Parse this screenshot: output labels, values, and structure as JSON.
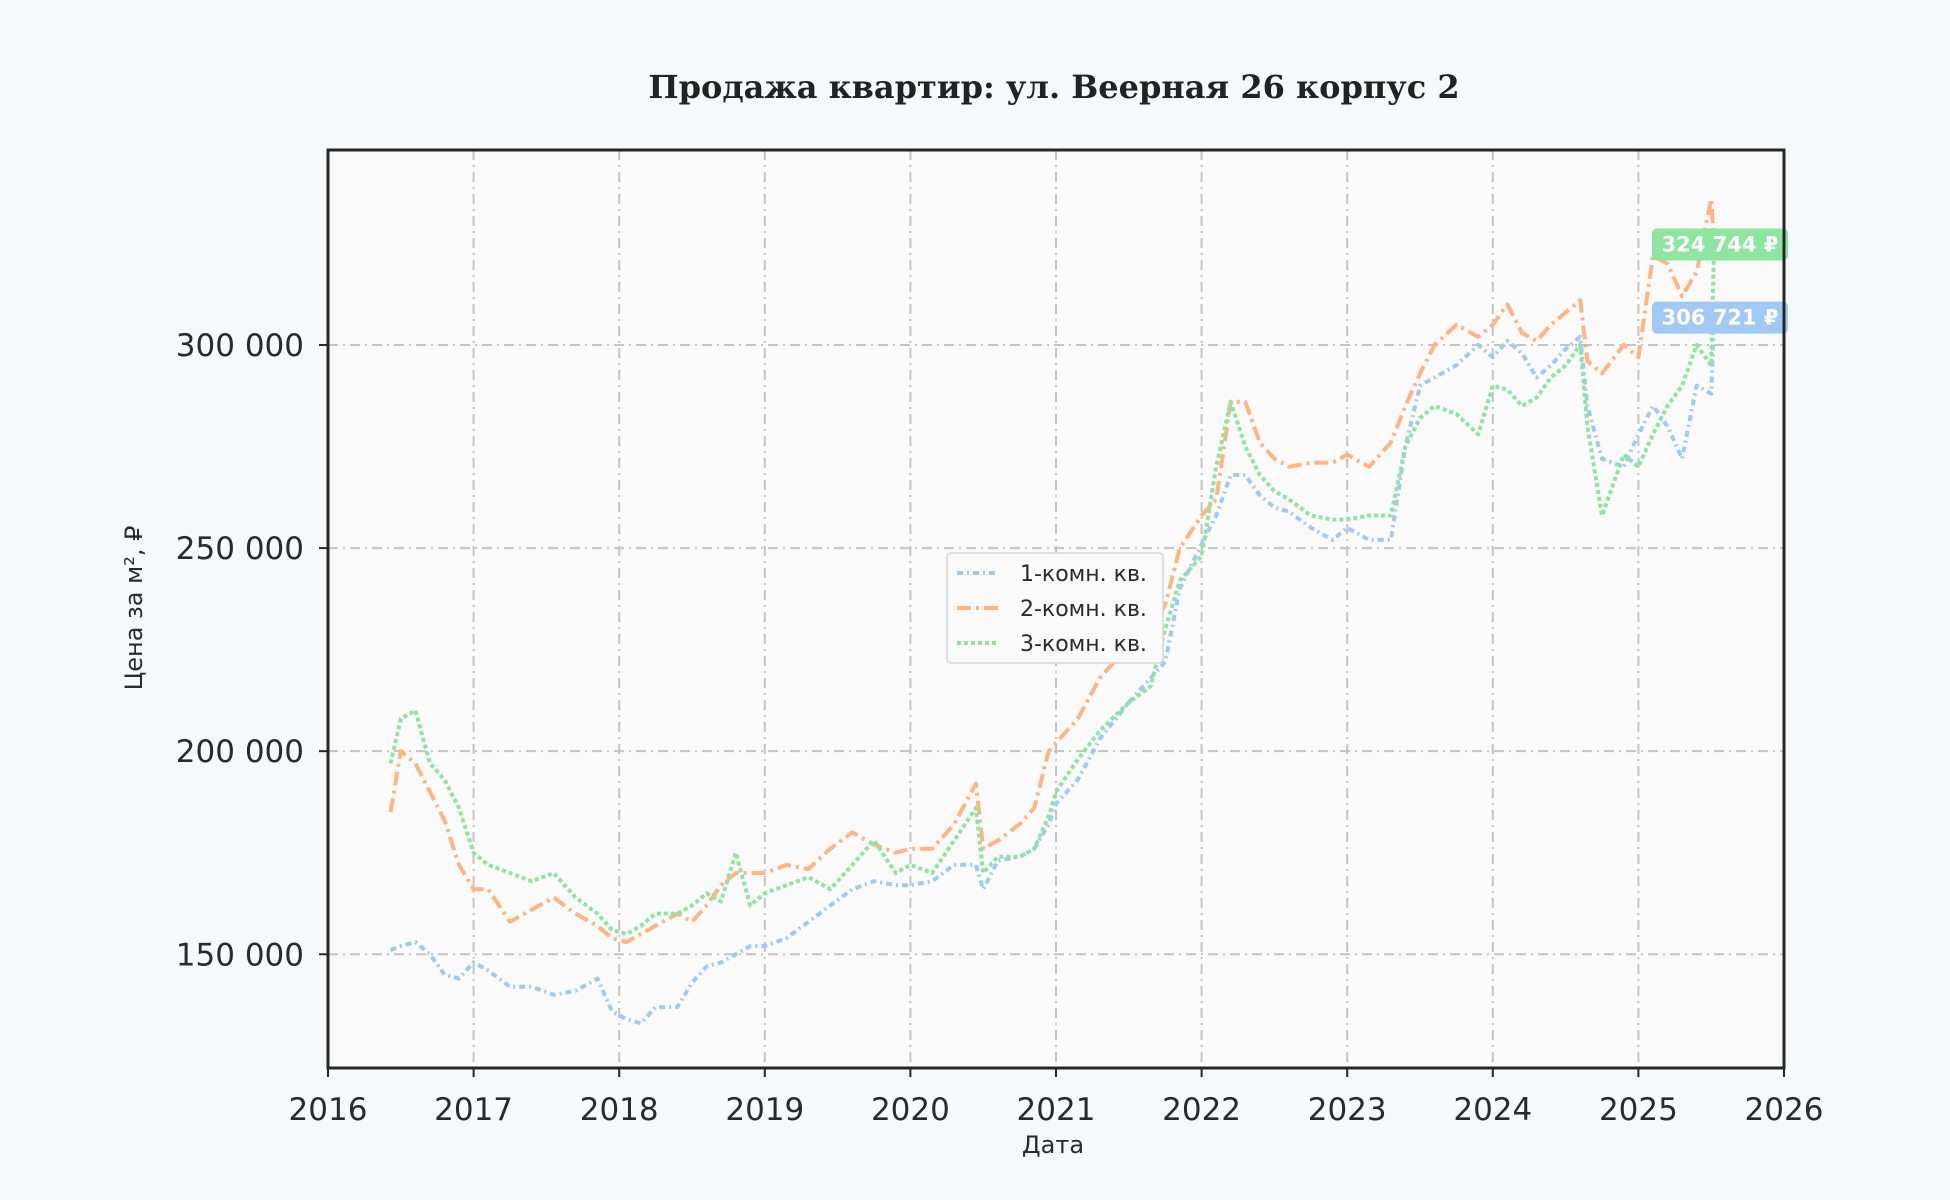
{
  "chart_data": {
    "type": "line",
    "title": "Продажа квартир: ул. Веерная 26 корпус 2",
    "xlabel": "Дата",
    "ylabel": "Цена за м², ₽",
    "xlim": [
      2016,
      2026
    ],
    "ylim": [
      122000,
      348000
    ],
    "x_ticks": [
      "2016",
      "2017",
      "2018",
      "2019",
      "2020",
      "2021",
      "2022",
      "2023",
      "2024",
      "2025",
      "2026"
    ],
    "y_ticks": [
      {
        "value": 150000,
        "label": "150 000"
      },
      {
        "value": 200000,
        "label": "200 000"
      },
      {
        "value": 250000,
        "label": "250 000"
      },
      {
        "value": 300000,
        "label": "300 000"
      }
    ],
    "grid": true,
    "legend_position": "center",
    "series": [
      {
        "name": "1-комн. кв.",
        "color": "#a1c9f4",
        "dash": "6 4 2 4",
        "x": [
          2016.43,
          2016.5,
          2016.6,
          2016.7,
          2016.8,
          2016.9,
          2017.0,
          2017.1,
          2017.25,
          2017.4,
          2017.55,
          2017.7,
          2017.85,
          2017.95,
          2018.05,
          2018.15,
          2018.25,
          2018.4,
          2018.5,
          2018.6,
          2018.7,
          2018.8,
          2018.9,
          2019.0,
          2019.15,
          2019.3,
          2019.45,
          2019.6,
          2019.75,
          2019.9,
          2020.0,
          2020.15,
          2020.3,
          2020.45,
          2020.5,
          2020.6,
          2020.75,
          2020.85,
          2020.95,
          2021.0,
          2021.15,
          2021.3,
          2021.5,
          2021.65,
          2021.75,
          2021.85,
          2022.0,
          2022.1,
          2022.2,
          2022.3,
          2022.4,
          2022.5,
          2022.6,
          2022.75,
          2022.9,
          2023.0,
          2023.15,
          2023.3,
          2023.4,
          2023.5,
          2023.6,
          2023.75,
          2023.9,
          2024.0,
          2024.1,
          2024.2,
          2024.3,
          2024.4,
          2024.5,
          2024.6,
          2024.65,
          2024.75,
          2024.9,
          2025.0,
          2025.1,
          2025.2,
          2025.3,
          2025.4,
          2025.5,
          2025.52
        ],
        "y": [
          151000,
          152000,
          153000,
          150000,
          145000,
          144000,
          148000,
          146000,
          142000,
          142000,
          140000,
          141000,
          144000,
          136000,
          134000,
          133000,
          137000,
          137000,
          143000,
          147000,
          148000,
          150000,
          152000,
          152000,
          154000,
          158000,
          162000,
          166000,
          168000,
          167000,
          167000,
          168000,
          172000,
          172000,
          166000,
          173000,
          174000,
          176000,
          182000,
          187000,
          193000,
          203000,
          212000,
          218000,
          222000,
          240000,
          251000,
          258000,
          268000,
          268000,
          263000,
          260000,
          259000,
          255000,
          252000,
          255000,
          252000,
          252000,
          275000,
          290000,
          292000,
          295000,
          300000,
          297000,
          301000,
          298000,
          292000,
          295000,
          299000,
          302000,
          285000,
          272000,
          270000,
          278000,
          285000,
          280000,
          272000,
          290000,
          288000,
          306721
        ]
      },
      {
        "name": "2-комн. кв.",
        "color": "#ffb482",
        "dash": "14 5 3 5",
        "x": [
          2016.43,
          2016.5,
          2016.6,
          2016.7,
          2016.8,
          2016.9,
          2017.0,
          2017.1,
          2017.25,
          2017.4,
          2017.55,
          2017.7,
          2017.85,
          2017.95,
          2018.05,
          2018.15,
          2018.25,
          2018.4,
          2018.5,
          2018.6,
          2018.7,
          2018.8,
          2018.9,
          2019.0,
          2019.15,
          2019.3,
          2019.45,
          2019.6,
          2019.75,
          2019.9,
          2020.0,
          2020.15,
          2020.3,
          2020.45,
          2020.5,
          2020.6,
          2020.75,
          2020.85,
          2020.95,
          2021.0,
          2021.15,
          2021.3,
          2021.5,
          2021.65,
          2021.75,
          2021.85,
          2022.0,
          2022.1,
          2022.2,
          2022.3,
          2022.4,
          2022.5,
          2022.6,
          2022.75,
          2022.9,
          2023.0,
          2023.15,
          2023.3,
          2023.4,
          2023.5,
          2023.6,
          2023.75,
          2023.9,
          2024.0,
          2024.1,
          2024.2,
          2024.3,
          2024.4,
          2024.5,
          2024.6,
          2024.65,
          2024.75,
          2024.9,
          2025.0,
          2025.1,
          2025.2,
          2025.3,
          2025.4,
          2025.5,
          2025.52
        ],
        "y": [
          185000,
          200000,
          197000,
          190000,
          183000,
          172000,
          166000,
          166000,
          158000,
          161000,
          164000,
          160000,
          157000,
          154000,
          153000,
          155000,
          157000,
          160000,
          158000,
          162000,
          167000,
          170000,
          170000,
          170000,
          172000,
          171000,
          176000,
          180000,
          177000,
          175000,
          176000,
          176000,
          182000,
          192000,
          176000,
          178000,
          182000,
          186000,
          200000,
          202000,
          208000,
          218000,
          226000,
          230000,
          236000,
          250000,
          258000,
          262000,
          286000,
          286000,
          276000,
          272000,
          270000,
          271000,
          271000,
          273000,
          270000,
          276000,
          285000,
          293000,
          300000,
          305000,
          302000,
          305000,
          310000,
          303000,
          301000,
          305000,
          308000,
          311000,
          296000,
          293000,
          300000,
          297000,
          322000,
          320000,
          312000,
          318000,
          336000,
          324744
        ]
      },
      {
        "name": "3-комн. кв.",
        "color": "#8de5a1",
        "dash": "4 3",
        "x": [
          2016.43,
          2016.5,
          2016.6,
          2016.7,
          2016.8,
          2016.9,
          2017.0,
          2017.1,
          2017.25,
          2017.4,
          2017.55,
          2017.7,
          2017.85,
          2017.95,
          2018.05,
          2018.15,
          2018.25,
          2018.4,
          2018.5,
          2018.6,
          2018.7,
          2018.8,
          2018.9,
          2019.0,
          2019.15,
          2019.3,
          2019.45,
          2019.6,
          2019.75,
          2019.9,
          2020.0,
          2020.15,
          2020.3,
          2020.45,
          2020.5,
          2020.6,
          2020.75,
          2020.85,
          2020.95,
          2021.0,
          2021.15,
          2021.3,
          2021.5,
          2021.65,
          2021.75,
          2021.85,
          2022.0,
          2022.1,
          2022.2,
          2022.3,
          2022.4,
          2022.5,
          2022.6,
          2022.75,
          2022.9,
          2023.0,
          2023.15,
          2023.3,
          2023.4,
          2023.5,
          2023.6,
          2023.75,
          2023.9,
          2024.0,
          2024.1,
          2024.2,
          2024.3,
          2024.4,
          2024.5,
          2024.6,
          2024.65,
          2024.75,
          2024.9,
          2025.0,
          2025.1,
          2025.2,
          2025.3,
          2025.4,
          2025.5,
          2025.52
        ],
        "y": [
          197000,
          208000,
          210000,
          197000,
          193000,
          186000,
          175000,
          172000,
          170000,
          168000,
          170000,
          164000,
          160000,
          156000,
          155000,
          157000,
          160000,
          160000,
          162000,
          165000,
          163000,
          175000,
          162000,
          165000,
          167000,
          169000,
          166000,
          172000,
          178000,
          170000,
          172000,
          170000,
          178000,
          186000,
          170000,
          174000,
          174000,
          176000,
          184000,
          190000,
          198000,
          205000,
          212000,
          216000,
          230000,
          242000,
          248000,
          270000,
          286000,
          275000,
          268000,
          264000,
          262000,
          258000,
          257000,
          257000,
          258000,
          258000,
          275000,
          282000,
          285000,
          283000,
          278000,
          290000,
          289000,
          285000,
          287000,
          292000,
          295000,
          300000,
          280000,
          258000,
          273000,
          270000,
          278000,
          285000,
          290000,
          300000,
          295000,
          324744
        ]
      }
    ],
    "end_labels": [
      {
        "text": "324 744 ₽",
        "color": "#8de5a1"
      },
      {
        "text": "306 721 ₽",
        "color": "#a1c9f4"
      }
    ]
  }
}
